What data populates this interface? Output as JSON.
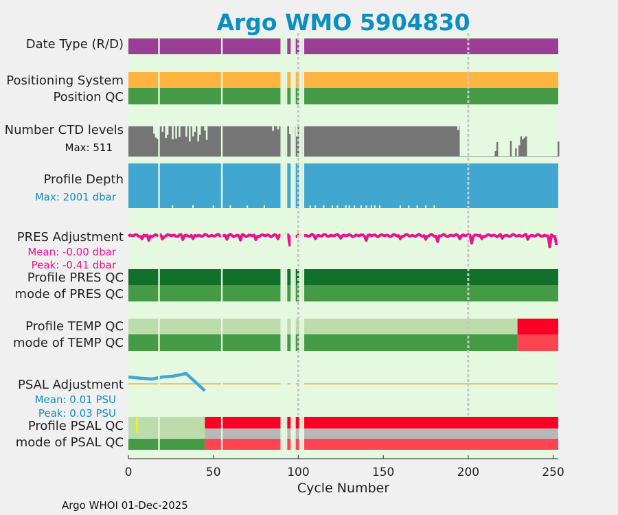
{
  "title": "Argo WMO 5904830",
  "footer": "Argo WHOI 01-Dec-2025",
  "colors": {
    "title": "#0a8fc0",
    "plot_bg": "#e5f8e0",
    "date_type": "#9b3e96",
    "positioning": "#fdb441",
    "qc_good": "#459a45",
    "qc_dark": "#12702b",
    "qc_light": "#bcdcac",
    "qc_bad": "#fb0024",
    "qc_bad_light": "#fd4451",
    "qc_gray": "#b8b8b8",
    "ctd": "#757575",
    "depth": "#41a7d1",
    "pres_adj": "#e8138e",
    "psal_adj": "#3fa8d4",
    "zero_line": "#f2b33b",
    "guide": "#c8c8c8"
  },
  "labels": {
    "date_type": "Date Type (R/D)",
    "positioning": "Positioning System",
    "position_qc": "Position QC",
    "ctd_levels": "Number CTD levels",
    "ctd_max": "Max: 511",
    "profile_depth": "Profile Depth",
    "depth_max": "Max: 2001 dbar",
    "pres_adj": "PRES Adjustment",
    "pres_mean": "Mean: -0.00 dbar",
    "pres_peak": "Peak: -0.41 dbar",
    "profile_pres_qc": "Profile PRES QC",
    "mode_pres_qc": "mode of PRES QC",
    "profile_temp_qc": "Profile TEMP QC",
    "mode_temp_qc": "mode of TEMP QC",
    "psal_adj": "PSAL Adjustment",
    "psal_mean": "Mean: 0.01 PSU",
    "psal_peak": "Peak: 0.03 PSU",
    "profile_psal_qc": "Profile PSAL QC",
    "mode_psal_qc": "mode of PSAL QC"
  },
  "chart_data": {
    "type": "bar",
    "title": "Argo WMO 5904830",
    "xlabel": "Cycle Number",
    "xlim": [
      0,
      253
    ],
    "x_ticks": [
      0,
      50,
      100,
      150,
      200,
      250
    ],
    "guide_lines_x": [
      100,
      200
    ],
    "missing_cycles": [
      18,
      55,
      90,
      91,
      92,
      93,
      96,
      97,
      98,
      101,
      102,
      103
    ],
    "ctd_levels": {
      "max": 511,
      "typical": 511,
      "reduced_after_cycle": 195,
      "reduced_value": 8,
      "dips": [
        [
          15,
          0.76
        ],
        [
          16,
          0.63
        ],
        [
          17,
          0.59
        ],
        [
          20,
          0.82
        ],
        [
          22,
          0.61
        ],
        [
          23,
          0.72
        ],
        [
          26,
          0.57
        ],
        [
          28,
          0.6
        ],
        [
          30,
          0.65
        ],
        [
          34,
          0.66
        ],
        [
          36,
          0.5
        ],
        [
          38,
          0.67
        ],
        [
          39,
          0.82
        ],
        [
          41,
          0.5
        ],
        [
          42,
          0.72
        ],
        [
          45,
          0.86
        ],
        [
          46,
          0.55
        ],
        [
          85,
          0.85
        ],
        [
          88,
          0.9
        ],
        [
          95,
          0.75
        ],
        [
          99,
          0.67
        ],
        [
          194,
          0.88
        ]
      ],
      "late_spikes": [
        [
          216,
          0.18
        ],
        [
          217,
          0.48
        ],
        [
          225,
          0.52
        ],
        [
          228,
          0.27
        ],
        [
          230,
          0.37
        ],
        [
          231,
          0.67
        ],
        [
          232,
          0.57
        ],
        [
          233,
          0.62
        ],
        [
          234,
          0.67
        ],
        [
          253,
          0.5
        ]
      ]
    },
    "profile_depth": {
      "max": 2001,
      "shallow_cycles": [
        26,
        38,
        50,
        60,
        70,
        80,
        107,
        110,
        115,
        120,
        123,
        128,
        130,
        133,
        137,
        140,
        143,
        145,
        148,
        160,
        165,
        170,
        175,
        180
      ]
    },
    "pres_adjustment": {
      "mean": -0.0,
      "peak": -0.41,
      "ylim": [
        -0.5,
        0.5
      ],
      "dips": [
        [
          8,
          -0.12
        ],
        [
          12,
          -0.18
        ],
        [
          20,
          -0.13
        ],
        [
          32,
          -0.15
        ],
        [
          38,
          -0.12
        ],
        [
          58,
          -0.14
        ],
        [
          66,
          -0.17
        ],
        [
          75,
          -0.15
        ],
        [
          88,
          -0.12
        ],
        [
          92,
          0.08
        ],
        [
          95,
          -0.35
        ],
        [
          110,
          -0.12
        ],
        [
          125,
          -0.1
        ],
        [
          140,
          -0.18
        ],
        [
          160,
          -0.12
        ],
        [
          175,
          -0.14
        ],
        [
          182,
          -0.22
        ],
        [
          195,
          -0.12
        ],
        [
          202,
          -0.28
        ],
        [
          208,
          -0.12
        ],
        [
          220,
          -0.1
        ],
        [
          235,
          -0.14
        ],
        [
          248,
          -0.41
        ],
        [
          252,
          -0.35
        ]
      ]
    },
    "psal_adjustment": {
      "mean": 0.01,
      "peak": 0.03,
      "ylim": [
        -0.04,
        0.04
      ],
      "x": [
        0,
        8,
        14,
        20,
        26,
        34,
        45
      ],
      "y": [
        0.01,
        0.008,
        0.007,
        0.01,
        0.011,
        0.015,
        -0.01
      ]
    },
    "qc_segments": {
      "profile_temp_qc": [
        [
          0,
          229,
          "qc_light"
        ],
        [
          229,
          253,
          "qc_bad"
        ]
      ],
      "mode_temp_qc": [
        [
          0,
          229,
          "qc_good"
        ],
        [
          229,
          253,
          "qc_bad_light"
        ]
      ],
      "profile_psal_qc": [
        [
          0,
          45,
          "qc_light"
        ],
        [
          45,
          253,
          "qc_bad"
        ]
      ],
      "mode_psal_qc": [
        [
          0,
          45,
          "qc_good"
        ],
        [
          45,
          253,
          "qc_bad_light"
        ]
      ],
      "psal_yellow_cycle": 5
    }
  }
}
